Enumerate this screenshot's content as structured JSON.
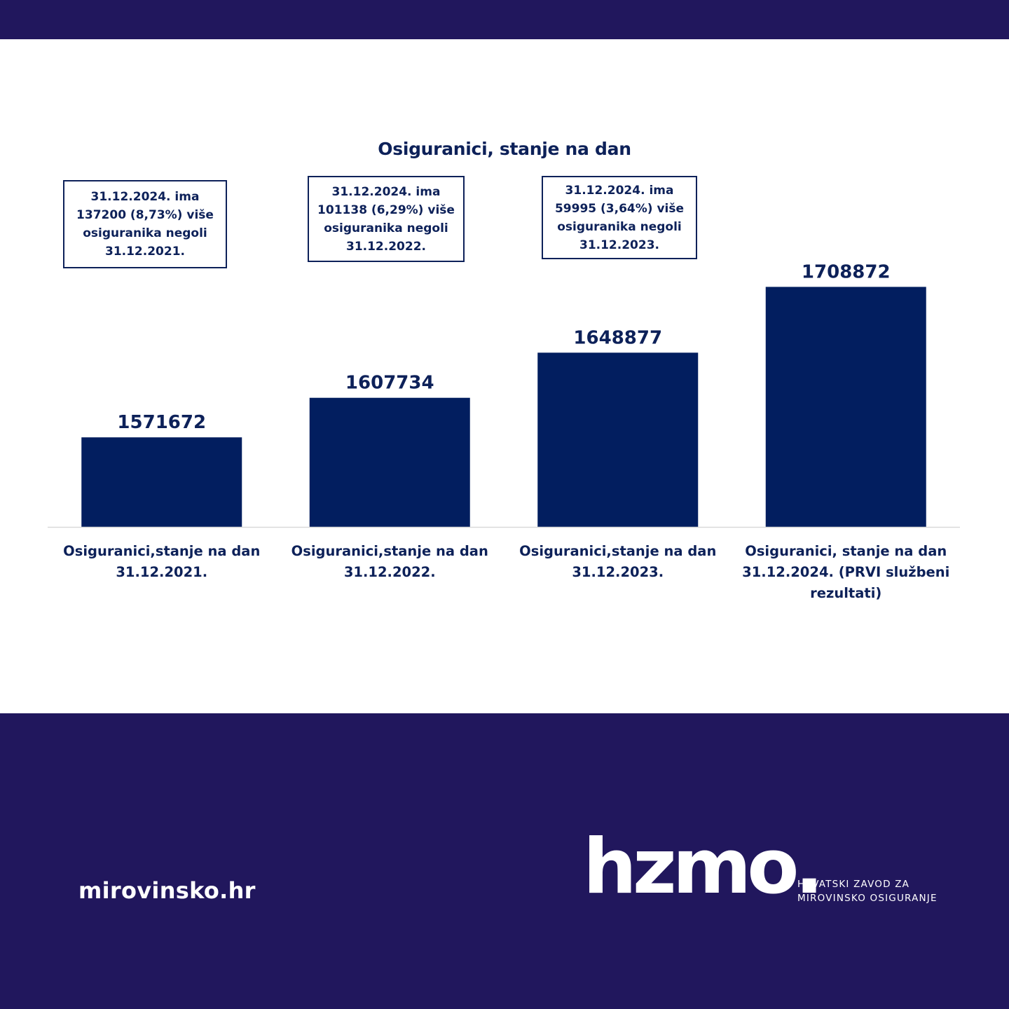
{
  "chart_data": {
    "type": "bar",
    "title": "Osiguranici, stanje na dan",
    "categories": [
      [
        "Osiguranici,stanje na dan",
        "31.12.2021."
      ],
      [
        "Osiguranici,stanje na dan",
        "31.12.2022."
      ],
      [
        "Osiguranici,stanje na dan",
        "31.12.2023."
      ],
      [
        "Osiguranici, stanje na dan",
        "31.12.2024. (PRVI službeni",
        "rezultati)"
      ]
    ],
    "values": [
      1571672,
      1607734,
      1648877,
      1708872
    ],
    "data_labels": [
      "1571672",
      "1607734",
      "1648877",
      "1708872"
    ],
    "ylim": [
      1490000,
      1720000
    ],
    "grid": false,
    "legend": "none",
    "bar_color": "#021e5f",
    "annotations": [
      [
        "31.12.2024. ima",
        "137200 (8,73%) više",
        "osiguranika negoli",
        "31.12.2021."
      ],
      [
        "31.12.2024. ima",
        "101138 (6,29%) više",
        "osiguranika negoli",
        "31.12.2022."
      ],
      [
        "31.12.2024. ima",
        "59995 (3,64%) više",
        "osiguranika negoli",
        "31.12.2023."
      ]
    ]
  },
  "footer": {
    "site": "mirovinsko.hr",
    "logo_text": "hzmo.",
    "logo_subtitle": [
      "HRVATSKI ZAVOD ZA",
      "MIROVINSKO OSIGURANJE"
    ]
  },
  "colors": {
    "band": "#21175d",
    "text_dark": "#0d2159",
    "bar": "#021e5f"
  }
}
